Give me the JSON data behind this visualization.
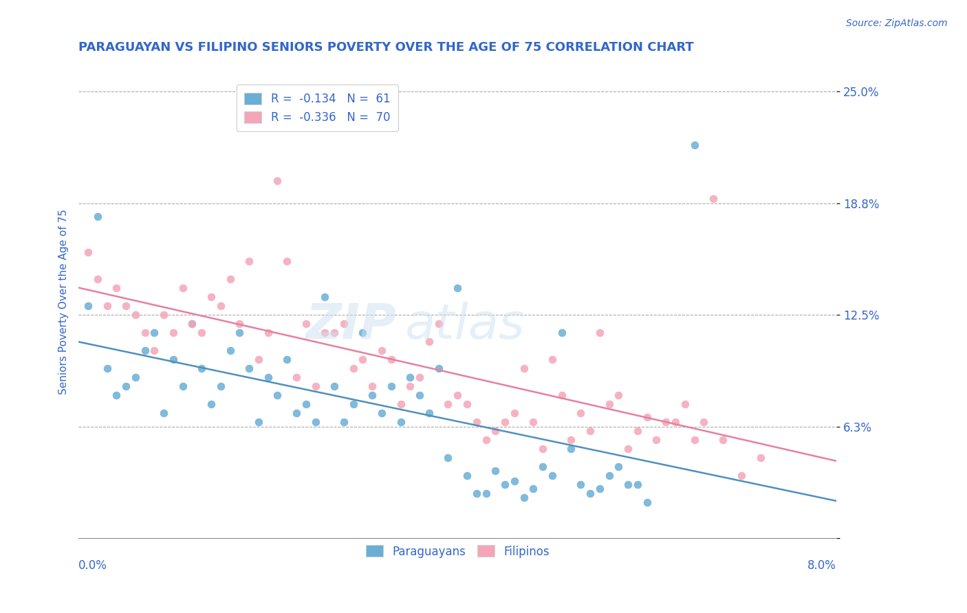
{
  "title": "PARAGUAYAN VS FILIPINO SENIORS POVERTY OVER THE AGE OF 75 CORRELATION CHART",
  "source": "Source: ZipAtlas.com",
  "ylabel": "Seniors Poverty Over the Age of 75",
  "yticks": [
    0.0,
    0.0625,
    0.125,
    0.1875,
    0.25
  ],
  "ytick_labels": [
    "",
    "6.3%",
    "12.5%",
    "18.8%",
    "25.0%"
  ],
  "xlim": [
    0.0,
    0.08
  ],
  "ylim": [
    0.0,
    0.265
  ],
  "legend_r1_val": "-0.134",
  "legend_n1_val": "61",
  "legend_r2_val": "-0.336",
  "legend_n2_val": "70",
  "blue_color": "#6aaed6",
  "pink_color": "#f4a6b8",
  "line_blue": "#4f8fbf",
  "line_pink": "#e87fa0",
  "title_color": "#3366cc",
  "axis_label_color": "#3366cc",
  "tick_color": "#3366cc",
  "paraguayans_x": [
    0.001,
    0.002,
    0.003,
    0.004,
    0.005,
    0.006,
    0.007,
    0.008,
    0.009,
    0.01,
    0.011,
    0.012,
    0.013,
    0.014,
    0.015,
    0.016,
    0.017,
    0.018,
    0.019,
    0.02,
    0.021,
    0.022,
    0.023,
    0.024,
    0.025,
    0.026,
    0.027,
    0.028,
    0.029,
    0.03,
    0.031,
    0.032,
    0.033,
    0.034,
    0.035,
    0.036,
    0.037,
    0.038,
    0.039,
    0.04,
    0.041,
    0.042,
    0.043,
    0.044,
    0.045,
    0.046,
    0.047,
    0.048,
    0.049,
    0.05,
    0.051,
    0.052,
    0.053,
    0.054,
    0.055,
    0.056,
    0.057,
    0.058,
    0.059,
    0.06,
    0.065
  ],
  "paraguayans_y": [
    0.13,
    0.18,
    0.095,
    0.08,
    0.085,
    0.09,
    0.105,
    0.115,
    0.07,
    0.1,
    0.085,
    0.12,
    0.095,
    0.075,
    0.085,
    0.105,
    0.115,
    0.095,
    0.065,
    0.09,
    0.08,
    0.1,
    0.07,
    0.075,
    0.065,
    0.135,
    0.085,
    0.065,
    0.075,
    0.115,
    0.08,
    0.07,
    0.085,
    0.065,
    0.09,
    0.08,
    0.07,
    0.095,
    0.045,
    0.14,
    0.035,
    0.025,
    0.025,
    0.038,
    0.03,
    0.032,
    0.023,
    0.028,
    0.04,
    0.035,
    0.115,
    0.05,
    0.03,
    0.025,
    0.028,
    0.035,
    0.04,
    0.03,
    0.03,
    0.02,
    0.22
  ],
  "filipinos_x": [
    0.001,
    0.002,
    0.003,
    0.004,
    0.005,
    0.006,
    0.007,
    0.008,
    0.009,
    0.01,
    0.011,
    0.012,
    0.013,
    0.014,
    0.015,
    0.016,
    0.017,
    0.018,
    0.019,
    0.02,
    0.021,
    0.022,
    0.023,
    0.024,
    0.025,
    0.026,
    0.027,
    0.028,
    0.029,
    0.03,
    0.031,
    0.032,
    0.033,
    0.034,
    0.035,
    0.036,
    0.037,
    0.038,
    0.039,
    0.04,
    0.041,
    0.042,
    0.043,
    0.044,
    0.045,
    0.046,
    0.047,
    0.048,
    0.049,
    0.05,
    0.051,
    0.052,
    0.053,
    0.054,
    0.055,
    0.056,
    0.057,
    0.058,
    0.059,
    0.06,
    0.061,
    0.062,
    0.063,
    0.064,
    0.065,
    0.066,
    0.067,
    0.068,
    0.07,
    0.072
  ],
  "filipinos_y": [
    0.16,
    0.145,
    0.13,
    0.14,
    0.13,
    0.125,
    0.115,
    0.105,
    0.125,
    0.115,
    0.14,
    0.12,
    0.115,
    0.135,
    0.13,
    0.145,
    0.12,
    0.155,
    0.1,
    0.115,
    0.2,
    0.155,
    0.09,
    0.12,
    0.085,
    0.115,
    0.115,
    0.12,
    0.095,
    0.1,
    0.085,
    0.105,
    0.1,
    0.075,
    0.085,
    0.09,
    0.11,
    0.12,
    0.075,
    0.08,
    0.075,
    0.065,
    0.055,
    0.06,
    0.065,
    0.07,
    0.095,
    0.065,
    0.05,
    0.1,
    0.08,
    0.055,
    0.07,
    0.06,
    0.115,
    0.075,
    0.08,
    0.05,
    0.06,
    0.068,
    0.055,
    0.065,
    0.065,
    0.075,
    0.055,
    0.065,
    0.19,
    0.055,
    0.035,
    0.045
  ]
}
